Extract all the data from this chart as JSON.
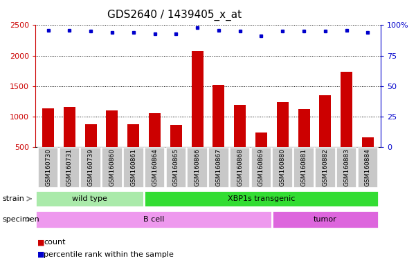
{
  "title": "GDS2640 / 1439405_x_at",
  "samples": [
    "GSM160730",
    "GSM160731",
    "GSM160739",
    "GSM160860",
    "GSM160861",
    "GSM160864",
    "GSM160865",
    "GSM160866",
    "GSM160867",
    "GSM160868",
    "GSM160869",
    "GSM160880",
    "GSM160881",
    "GSM160882",
    "GSM160883",
    "GSM160884"
  ],
  "counts": [
    1130,
    1155,
    870,
    1100,
    870,
    1060,
    860,
    2070,
    1520,
    1190,
    740,
    1240,
    1120,
    1350,
    1740,
    660
  ],
  "percentile_ranks": [
    96,
    96,
    95,
    94,
    94,
    93,
    93,
    98,
    96,
    95,
    91,
    95,
    95,
    95,
    96,
    94
  ],
  "bar_color": "#cc0000",
  "dot_color": "#0000cc",
  "left_ylim": [
    500,
    2500
  ],
  "right_ylim": [
    0,
    100
  ],
  "left_yticks": [
    500,
    1000,
    1500,
    2000,
    2500
  ],
  "right_yticks": [
    0,
    25,
    50,
    75,
    100
  ],
  "right_yticklabels": [
    "0",
    "25",
    "50",
    "75",
    "100%"
  ],
  "strain_groups": [
    {
      "label": "wild type",
      "start": 0,
      "end": 5,
      "color": "#aaeaaa"
    },
    {
      "label": "XBP1s transgenic",
      "start": 5,
      "end": 16,
      "color": "#33dd33"
    }
  ],
  "specimen_groups": [
    {
      "label": "B cell",
      "start": 0,
      "end": 11,
      "color": "#ee99ee"
    },
    {
      "label": "tumor",
      "start": 11,
      "end": 16,
      "color": "#dd66dd"
    }
  ],
  "bg_color": "#ffffff",
  "tick_area_color": "#c8c8c8",
  "title_fontsize": 11,
  "sample_fontsize": 6.5,
  "row_fontsize": 8,
  "legend_red_label": "count",
  "legend_blue_label": "percentile rank within the sample"
}
